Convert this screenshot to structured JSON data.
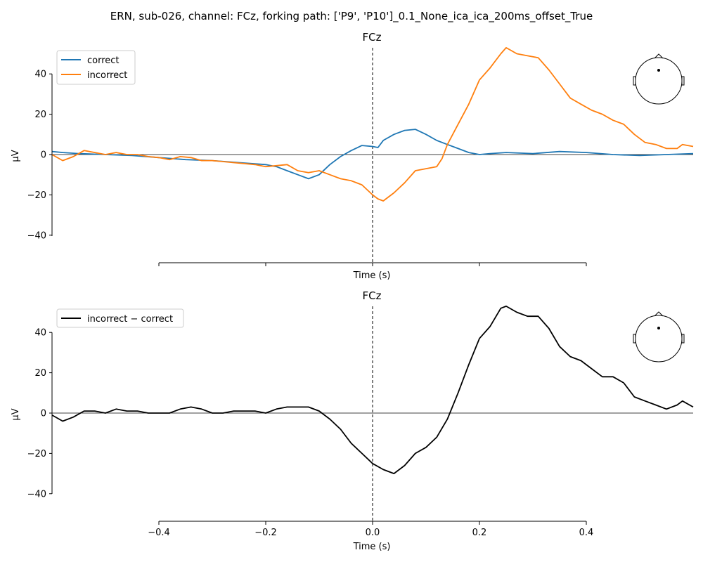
{
  "figure": {
    "suptitle": "ERN, sub-026, channel: FCz, forking path: ['P9', 'P10']_0.1_None_ica_ica_200ms_offset_True"
  },
  "colors": {
    "correct": "#1f77b4",
    "incorrect": "#ff7f0e",
    "difference": "#000000",
    "zero_line": "#000000"
  },
  "chart_data": [
    {
      "type": "line",
      "title": "FCz",
      "xlabel": "Time (s)",
      "ylabel": "µV",
      "xlim": [
        -0.6,
        0.6
      ],
      "ylim": [
        -40,
        50
      ],
      "x_ticks": [
        -0.4,
        -0.2,
        0.0,
        0.2,
        0.4
      ],
      "x_tick_labels_shown": false,
      "y_ticks": [
        -40,
        -20,
        0,
        20,
        40
      ],
      "y_tick_labels": [
        "−40",
        "−20",
        "0",
        "20",
        "40"
      ],
      "vline_x": 0.0,
      "hline_y": 0,
      "legend_position": "top-left",
      "head_inset": "top-right",
      "series": [
        {
          "name": "correct",
          "color": "#1f77b4",
          "points": [
            [
              -0.6,
              1.5
            ],
            [
              -0.58,
              1
            ],
            [
              -0.55,
              0.5
            ],
            [
              -0.5,
              0
            ],
            [
              -0.45,
              -0.5
            ],
            [
              -0.4,
              -1.5
            ],
            [
              -0.35,
              -2.5
            ],
            [
              -0.3,
              -3
            ],
            [
              -0.25,
              -4
            ],
            [
              -0.2,
              -5
            ],
            [
              -0.18,
              -6
            ],
            [
              -0.16,
              -8
            ],
            [
              -0.14,
              -10
            ],
            [
              -0.12,
              -12
            ],
            [
              -0.1,
              -10
            ],
            [
              -0.08,
              -5
            ],
            [
              -0.06,
              -1
            ],
            [
              -0.04,
              2
            ],
            [
              -0.02,
              4.5
            ],
            [
              0.0,
              4
            ],
            [
              0.01,
              3.5
            ],
            [
              0.02,
              7
            ],
            [
              0.04,
              10
            ],
            [
              0.06,
              12
            ],
            [
              0.08,
              12.5
            ],
            [
              0.1,
              10
            ],
            [
              0.12,
              7
            ],
            [
              0.14,
              5
            ],
            [
              0.16,
              3
            ],
            [
              0.18,
              1
            ],
            [
              0.2,
              0
            ],
            [
              0.22,
              0.5
            ],
            [
              0.25,
              1
            ],
            [
              0.3,
              0.5
            ],
            [
              0.35,
              1.5
            ],
            [
              0.4,
              1
            ],
            [
              0.45,
              0
            ],
            [
              0.5,
              -0.5
            ],
            [
              0.55,
              0
            ],
            [
              0.6,
              0.5
            ]
          ]
        },
        {
          "name": "incorrect",
          "color": "#ff7f0e",
          "points": [
            [
              -0.6,
              0
            ],
            [
              -0.58,
              -3
            ],
            [
              -0.56,
              -1
            ],
            [
              -0.54,
              2
            ],
            [
              -0.52,
              1
            ],
            [
              -0.5,
              0
            ],
            [
              -0.48,
              1
            ],
            [
              -0.46,
              0
            ],
            [
              -0.44,
              0
            ],
            [
              -0.42,
              -1
            ],
            [
              -0.4,
              -1.5
            ],
            [
              -0.38,
              -2.5
            ],
            [
              -0.36,
              -1
            ],
            [
              -0.34,
              -1.5
            ],
            [
              -0.32,
              -3
            ],
            [
              -0.3,
              -3
            ],
            [
              -0.28,
              -3.5
            ],
            [
              -0.26,
              -4
            ],
            [
              -0.24,
              -4.5
            ],
            [
              -0.22,
              -5
            ],
            [
              -0.2,
              -6
            ],
            [
              -0.18,
              -5.5
            ],
            [
              -0.16,
              -5
            ],
            [
              -0.14,
              -8
            ],
            [
              -0.12,
              -9
            ],
            [
              -0.1,
              -8
            ],
            [
              -0.08,
              -10
            ],
            [
              -0.06,
              -12
            ],
            [
              -0.04,
              -13
            ],
            [
              -0.02,
              -15
            ],
            [
              0.0,
              -20
            ],
            [
              0.01,
              -22
            ],
            [
              0.02,
              -23
            ],
            [
              0.04,
              -19
            ],
            [
              0.06,
              -14
            ],
            [
              0.08,
              -8
            ],
            [
              0.1,
              -7
            ],
            [
              0.12,
              -6
            ],
            [
              0.13,
              -2
            ],
            [
              0.14,
              5
            ],
            [
              0.16,
              15
            ],
            [
              0.18,
              25
            ],
            [
              0.2,
              37
            ],
            [
              0.22,
              43
            ],
            [
              0.24,
              50
            ],
            [
              0.25,
              53
            ],
            [
              0.27,
              50
            ],
            [
              0.29,
              49
            ],
            [
              0.31,
              48
            ],
            [
              0.33,
              42
            ],
            [
              0.35,
              35
            ],
            [
              0.37,
              28
            ],
            [
              0.39,
              25
            ],
            [
              0.41,
              22
            ],
            [
              0.43,
              20
            ],
            [
              0.45,
              17
            ],
            [
              0.47,
              15
            ],
            [
              0.49,
              10
            ],
            [
              0.51,
              6
            ],
            [
              0.53,
              5
            ],
            [
              0.55,
              3
            ],
            [
              0.57,
              3
            ],
            [
              0.58,
              5
            ],
            [
              0.6,
              4
            ]
          ]
        }
      ]
    },
    {
      "type": "line",
      "title": "FCz",
      "xlabel": "Time (s)",
      "ylabel": "µV",
      "xlim": [
        -0.6,
        0.6
      ],
      "ylim": [
        -40,
        50
      ],
      "x_ticks": [
        -0.4,
        -0.2,
        0.0,
        0.2,
        0.4
      ],
      "x_tick_labels": [
        "−0.4",
        "−0.2",
        "0.0",
        "0.2",
        "0.4"
      ],
      "x_tick_labels_shown": true,
      "y_ticks": [
        -40,
        -20,
        0,
        20,
        40
      ],
      "y_tick_labels": [
        "−40",
        "−20",
        "0",
        "20",
        "40"
      ],
      "vline_x": 0.0,
      "hline_y": 0,
      "legend_position": "top-left",
      "head_inset": "top-right",
      "series": [
        {
          "name": "incorrect − correct",
          "color": "#000000",
          "points": [
            [
              -0.6,
              -1
            ],
            [
              -0.58,
              -4
            ],
            [
              -0.56,
              -2
            ],
            [
              -0.54,
              1
            ],
            [
              -0.52,
              1
            ],
            [
              -0.5,
              0
            ],
            [
              -0.48,
              2
            ],
            [
              -0.46,
              1
            ],
            [
              -0.44,
              1
            ],
            [
              -0.42,
              0
            ],
            [
              -0.4,
              0
            ],
            [
              -0.38,
              0
            ],
            [
              -0.36,
              2
            ],
            [
              -0.34,
              3
            ],
            [
              -0.32,
              2
            ],
            [
              -0.3,
              0
            ],
            [
              -0.28,
              0
            ],
            [
              -0.26,
              1
            ],
            [
              -0.24,
              1
            ],
            [
              -0.22,
              1
            ],
            [
              -0.2,
              0
            ],
            [
              -0.18,
              2
            ],
            [
              -0.16,
              3
            ],
            [
              -0.14,
              3
            ],
            [
              -0.12,
              3
            ],
            [
              -0.1,
              1
            ],
            [
              -0.08,
              -3
            ],
            [
              -0.06,
              -8
            ],
            [
              -0.04,
              -15
            ],
            [
              -0.02,
              -20
            ],
            [
              0.0,
              -25
            ],
            [
              0.02,
              -28
            ],
            [
              0.04,
              -30
            ],
            [
              0.06,
              -26
            ],
            [
              0.08,
              -20
            ],
            [
              0.1,
              -17
            ],
            [
              0.12,
              -12
            ],
            [
              0.14,
              -3
            ],
            [
              0.16,
              10
            ],
            [
              0.18,
              24
            ],
            [
              0.2,
              37
            ],
            [
              0.22,
              43
            ],
            [
              0.24,
              52
            ],
            [
              0.25,
              53
            ],
            [
              0.27,
              50
            ],
            [
              0.29,
              48
            ],
            [
              0.31,
              48
            ],
            [
              0.33,
              42
            ],
            [
              0.35,
              33
            ],
            [
              0.37,
              28
            ],
            [
              0.39,
              26
            ],
            [
              0.41,
              22
            ],
            [
              0.43,
              18
            ],
            [
              0.45,
              18
            ],
            [
              0.47,
              15
            ],
            [
              0.49,
              8
            ],
            [
              0.51,
              6
            ],
            [
              0.53,
              4
            ],
            [
              0.55,
              2
            ],
            [
              0.57,
              4
            ],
            [
              0.58,
              6
            ],
            [
              0.6,
              3
            ]
          ]
        }
      ]
    }
  ]
}
